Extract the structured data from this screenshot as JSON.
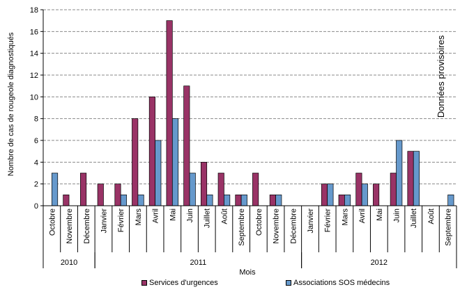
{
  "chart_data": {
    "type": "bar",
    "ylabel": "Nombre de cas de rougeole diagnostiqués",
    "xlabel": "Mois",
    "annotation": "Données provisoires",
    "ylim": [
      0,
      18
    ],
    "yticks": [
      0,
      2,
      4,
      6,
      8,
      10,
      12,
      14,
      16,
      18
    ],
    "grid": true,
    "legend_position": "bottom",
    "categories": [
      "Octobre",
      "Novembre",
      "Décembre",
      "Janvier",
      "Février",
      "Mars",
      "Avril",
      "Mai",
      "Juin",
      "Juillet",
      "Août",
      "Septembre",
      "Octobre",
      "Novembre",
      "Décembre",
      "Janvier",
      "Février",
      "Mars",
      "Avril",
      "Mai",
      "Juin",
      "Juillet",
      "Août",
      "Septembre"
    ],
    "years": [
      {
        "label": "2010",
        "start": 0,
        "count": 3
      },
      {
        "label": "2011",
        "start": 3,
        "count": 12
      },
      {
        "label": "2012",
        "start": 15,
        "count": 9
      }
    ],
    "series": [
      {
        "name": "Services d'urgences",
        "color": "#993366",
        "values": [
          0,
          1,
          3,
          2,
          2,
          8,
          10,
          17,
          11,
          4,
          3,
          1,
          3,
          1,
          0,
          0,
          2,
          1,
          3,
          2,
          3,
          5,
          0,
          0
        ]
      },
      {
        "name": "Associations SOS médecins",
        "color": "#6699cc",
        "values": [
          3,
          0,
          0,
          0,
          1,
          1,
          6,
          8,
          3,
          1,
          1,
          1,
          0,
          1,
          0,
          0,
          2,
          1,
          2,
          0,
          6,
          5,
          0,
          1
        ]
      }
    ]
  }
}
